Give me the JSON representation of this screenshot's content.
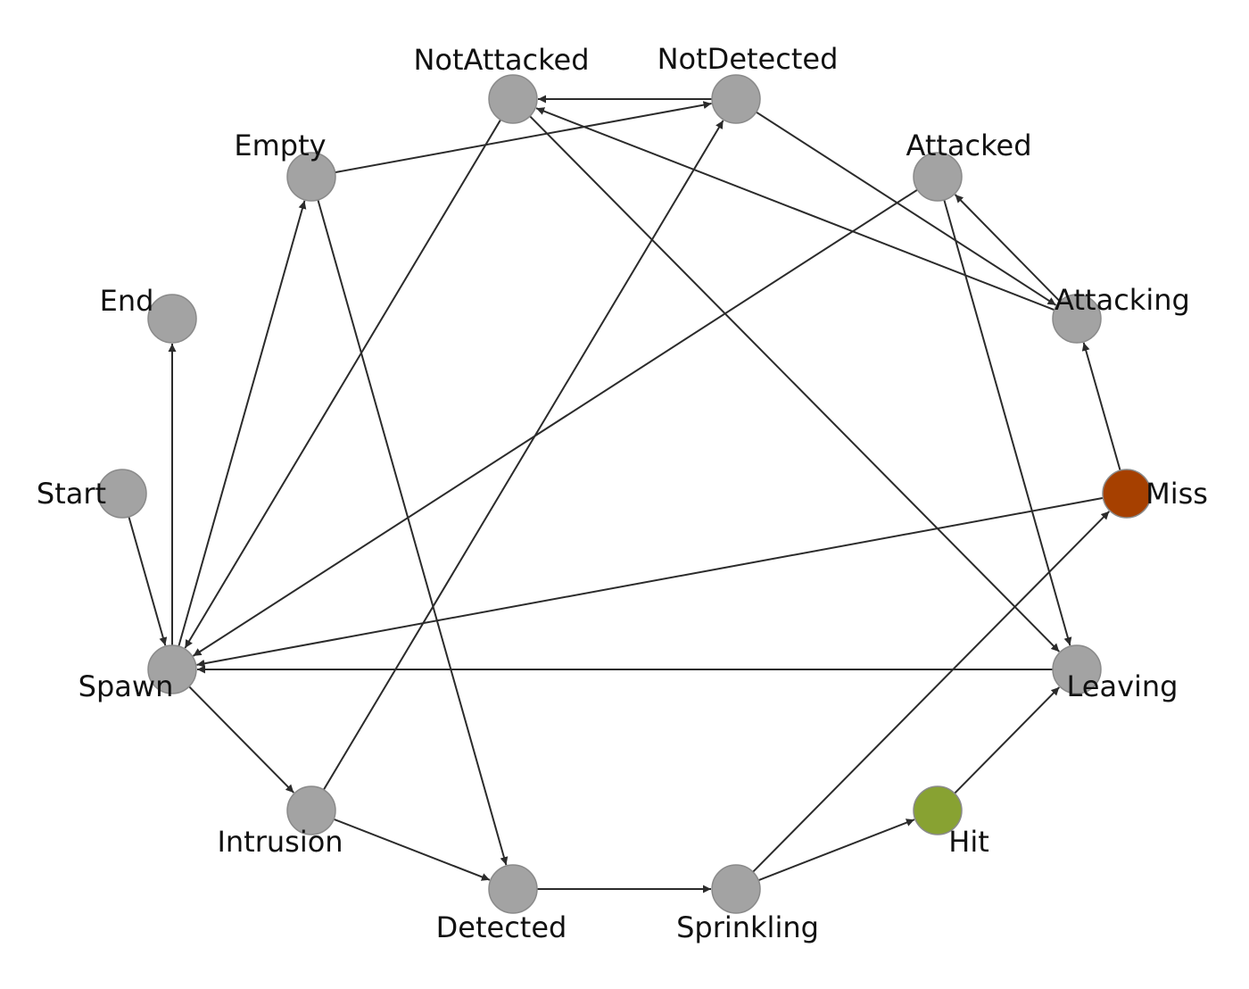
{
  "graph": {
    "default_node_color": "#a3a3a3",
    "edge_color": "#2b2b2b",
    "nodes": [
      {
        "id": "Start",
        "label": "Start",
        "color": "#a3a3a3"
      },
      {
        "id": "End",
        "label": "End",
        "color": "#a3a3a3"
      },
      {
        "id": "Spawn",
        "label": "Spawn",
        "color": "#a3a3a3"
      },
      {
        "id": "Empty",
        "label": "Empty",
        "color": "#a3a3a3"
      },
      {
        "id": "NotAttacked",
        "label": "NotAttacked",
        "color": "#a3a3a3"
      },
      {
        "id": "NotDetected",
        "label": "NotDetected",
        "color": "#a3a3a3"
      },
      {
        "id": "Attacked",
        "label": "Attacked",
        "color": "#a3a3a3"
      },
      {
        "id": "Attacking",
        "label": "Attacking",
        "color": "#a3a3a3"
      },
      {
        "id": "Miss",
        "label": "Miss",
        "color": "#a64000"
      },
      {
        "id": "Leaving",
        "label": "Leaving",
        "color": "#a3a3a3"
      },
      {
        "id": "Hit",
        "label": "Hit",
        "color": "#88a232"
      },
      {
        "id": "Sprinkling",
        "label": "Sprinkling",
        "color": "#a3a3a3"
      },
      {
        "id": "Detected",
        "label": "Detected",
        "color": "#a3a3a3"
      },
      {
        "id": "Intrusion",
        "label": "Intrusion",
        "color": "#a3a3a3"
      }
    ],
    "edges": [
      {
        "from": "Start",
        "to": "Spawn"
      },
      {
        "from": "Spawn",
        "to": "End"
      },
      {
        "from": "Spawn",
        "to": "Empty"
      },
      {
        "from": "Spawn",
        "to": "Intrusion"
      },
      {
        "from": "Empty",
        "to": "NotDetected"
      },
      {
        "from": "Empty",
        "to": "Detected"
      },
      {
        "from": "NotDetected",
        "to": "NotAttacked"
      },
      {
        "from": "NotDetected",
        "to": "Attacking"
      },
      {
        "from": "NotAttacked",
        "to": "Spawn"
      },
      {
        "from": "NotAttacked",
        "to": "Leaving"
      },
      {
        "from": "Attacked",
        "to": "Spawn"
      },
      {
        "from": "Attacked",
        "to": "Leaving"
      },
      {
        "from": "Attacking",
        "to": "Attacked"
      },
      {
        "from": "Attacking",
        "to": "NotAttacked"
      },
      {
        "from": "Miss",
        "to": "Attacking"
      },
      {
        "from": "Miss",
        "to": "Spawn"
      },
      {
        "from": "Leaving",
        "to": "Spawn"
      },
      {
        "from": "Hit",
        "to": "Leaving"
      },
      {
        "from": "Sprinkling",
        "to": "Hit"
      },
      {
        "from": "Sprinkling",
        "to": "Miss"
      },
      {
        "from": "Detected",
        "to": "Sprinkling"
      },
      {
        "from": "Intrusion",
        "to": "Detected"
      },
      {
        "from": "Intrusion",
        "to": "NotDetected"
      }
    ]
  }
}
